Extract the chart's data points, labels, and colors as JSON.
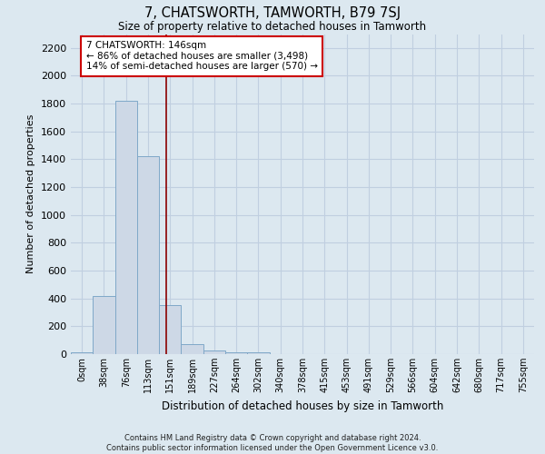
{
  "title": "7, CHATSWORTH, TAMWORTH, B79 7SJ",
  "subtitle": "Size of property relative to detached houses in Tamworth",
  "xlabel": "Distribution of detached houses by size in Tamworth",
  "ylabel": "Number of detached properties",
  "footer_line1": "Contains HM Land Registry data © Crown copyright and database right 2024.",
  "footer_line2": "Contains public sector information licensed under the Open Government Licence v3.0.",
  "bar_labels": [
    "0sqm",
    "38sqm",
    "76sqm",
    "113sqm",
    "151sqm",
    "189sqm",
    "227sqm",
    "264sqm",
    "302sqm",
    "340sqm",
    "378sqm",
    "415sqm",
    "453sqm",
    "491sqm",
    "529sqm",
    "566sqm",
    "604sqm",
    "642sqm",
    "680sqm",
    "717sqm",
    "755sqm"
  ],
  "bar_values": [
    10,
    420,
    1820,
    1420,
    350,
    70,
    25,
    15,
    10,
    0,
    0,
    0,
    0,
    0,
    0,
    0,
    0,
    0,
    0,
    0,
    0
  ],
  "bar_color": "#cdd8e6",
  "bar_edge_color": "#7fa8c8",
  "ylim": [
    0,
    2300
  ],
  "yticks": [
    0,
    200,
    400,
    600,
    800,
    1000,
    1200,
    1400,
    1600,
    1800,
    2000,
    2200
  ],
  "vline_x": 3.84,
  "vline_color": "#8b0000",
  "annotation_text_line1": "7 CHATSWORTH: 146sqm",
  "annotation_text_line2": "← 86% of detached houses are smaller (3,498)",
  "annotation_text_line3": "14% of semi-detached houses are larger (570) →",
  "annotation_box_color": "#cc0000",
  "annotation_fill": "#ffffff",
  "grid_color": "#c0cfe0",
  "background_color": "#dce8f0",
  "plot_background": "#dce8f0"
}
